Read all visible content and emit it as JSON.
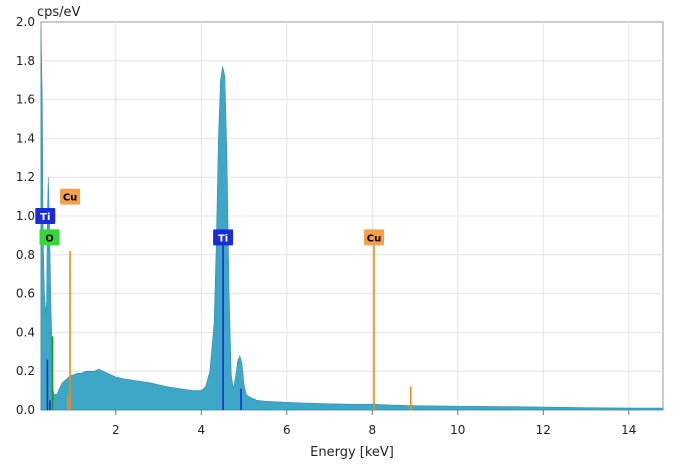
{
  "chart_data": {
    "type": "area",
    "ylabel": "cps/eV",
    "xlabel": "Energy [keV]",
    "xlim": [
      0.25,
      14.8
    ],
    "ylim": [
      0,
      2.0
    ],
    "x_ticks": [
      2,
      4,
      6,
      8,
      10,
      12,
      14
    ],
    "y_ticks": [
      0.0,
      0.2,
      0.4,
      0.6,
      0.8,
      1.0,
      1.2,
      1.4,
      1.6,
      1.8,
      2.0
    ],
    "x_tick_labels": [
      "2",
      "4",
      "6",
      "8",
      "10",
      "12",
      "14"
    ],
    "y_tick_labels": [
      "0.0",
      "0.2",
      "0.4",
      "0.6",
      "0.8",
      "1.0",
      "1.2",
      "1.4",
      "1.6",
      "1.8",
      "2.0"
    ],
    "grid": true,
    "spectrum_color": "#3ea6c6",
    "spectrum": {
      "x": [
        0.25,
        0.28,
        0.3,
        0.33,
        0.36,
        0.38,
        0.4,
        0.42,
        0.45,
        0.48,
        0.5,
        0.52,
        0.55,
        0.58,
        0.62,
        0.66,
        0.7,
        0.75,
        0.8,
        0.85,
        0.9,
        0.95,
        1.0,
        1.1,
        1.2,
        1.3,
        1.4,
        1.5,
        1.6,
        1.7,
        1.8,
        1.9,
        2.0,
        2.2,
        2.5,
        2.8,
        3.0,
        3.2,
        3.5,
        3.8,
        4.0,
        4.1,
        4.2,
        4.3,
        4.35,
        4.4,
        4.45,
        4.5,
        4.55,
        4.6,
        4.65,
        4.7,
        4.75,
        4.8,
        4.85,
        4.9,
        4.95,
        5.0,
        5.05,
        5.1,
        5.2,
        5.3,
        5.5,
        6.0,
        6.5,
        7.0,
        7.5,
        8.0,
        8.5,
        9.0,
        10.0,
        11.0,
        12.0,
        13.0,
        14.0,
        14.8
      ],
      "y": [
        1.97,
        1.6,
        0.9,
        0.6,
        0.5,
        0.55,
        1.0,
        1.2,
        0.95,
        0.55,
        0.4,
        0.12,
        0.08,
        0.08,
        0.08,
        0.1,
        0.12,
        0.14,
        0.15,
        0.16,
        0.17,
        0.18,
        0.18,
        0.19,
        0.19,
        0.2,
        0.2,
        0.2,
        0.21,
        0.2,
        0.19,
        0.18,
        0.17,
        0.16,
        0.15,
        0.14,
        0.13,
        0.12,
        0.11,
        0.1,
        0.1,
        0.12,
        0.2,
        0.45,
        0.85,
        1.4,
        1.7,
        1.77,
        1.72,
        1.3,
        0.6,
        0.18,
        0.11,
        0.17,
        0.25,
        0.28,
        0.24,
        0.13,
        0.08,
        0.07,
        0.06,
        0.05,
        0.045,
        0.04,
        0.035,
        0.032,
        0.03,
        0.03,
        0.025,
        0.022,
        0.02,
        0.018,
        0.015,
        0.012,
        0.01,
        0.01
      ]
    },
    "element_lines": [
      {
        "element": "Ti",
        "color": "#1a2bd8",
        "x": 0.4,
        "height": 0.26
      },
      {
        "element": "Ti",
        "color": "#1a2bd8",
        "x": 0.46,
        "height": 0.05
      },
      {
        "element": "O",
        "color": "#1a9a1a",
        "x": 0.52,
        "height": 0.38
      },
      {
        "element": "Cu",
        "color": "#f08a1c",
        "x": 0.93,
        "height": 0.82
      },
      {
        "element": "Cu",
        "color": "#f08a1c",
        "x": 0.88,
        "height": 0.08
      },
      {
        "element": "Ti",
        "color": "#1a2bd8",
        "x": 4.51,
        "height": 0.85
      },
      {
        "element": "Ti",
        "color": "#1a2bd8",
        "x": 4.93,
        "height": 0.11
      },
      {
        "element": "Cu",
        "color": "#f08a1c",
        "x": 8.04,
        "height": 0.85
      },
      {
        "element": "Cu",
        "color": "#f08a1c",
        "x": 8.9,
        "height": 0.12
      }
    ],
    "markers": [
      {
        "label": "Ti",
        "x": 0.35,
        "y": 1.0,
        "bg": "#1a2bd8",
        "fg": "#ffffff"
      },
      {
        "label": "O",
        "x": 0.45,
        "y": 0.89,
        "bg": "#34d834",
        "fg": "#000000"
      },
      {
        "label": "Cu",
        "x": 0.93,
        "y": 1.1,
        "bg": "#f5a04a",
        "fg": "#000000"
      },
      {
        "label": "Ti",
        "x": 4.51,
        "y": 0.89,
        "bg": "#1a2bd8",
        "fg": "#ffffff"
      },
      {
        "label": "Cu",
        "x": 8.04,
        "y": 0.89,
        "bg": "#f5a04a",
        "fg": "#000000"
      }
    ]
  }
}
